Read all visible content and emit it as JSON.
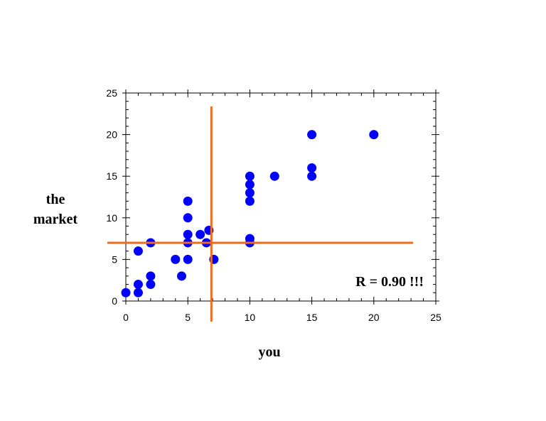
{
  "chart_data": {
    "type": "scatter",
    "xlabel": "you",
    "ylabel": [
      "the",
      "market"
    ],
    "annotation": "R = 0.90 !!!",
    "xlim": [
      0,
      25
    ],
    "ylim": [
      0,
      25
    ],
    "xticks": [
      "0",
      "5",
      "10",
      "15",
      "20",
      "25"
    ],
    "yticks": [
      "0",
      "5",
      "10",
      "15",
      "20",
      "25"
    ],
    "grid": false,
    "marker_color": "#0000ff",
    "crosshair_color": "#f26b1d",
    "crosshair": {
      "x": 6.9,
      "y": 7
    },
    "points": [
      {
        "x": 0,
        "y": 1
      },
      {
        "x": 1,
        "y": 1
      },
      {
        "x": 1,
        "y": 2
      },
      {
        "x": 1,
        "y": 6
      },
      {
        "x": 2,
        "y": 2
      },
      {
        "x": 2,
        "y": 3
      },
      {
        "x": 2,
        "y": 7
      },
      {
        "x": 4,
        "y": 5
      },
      {
        "x": 4.5,
        "y": 3
      },
      {
        "x": 5,
        "y": 5
      },
      {
        "x": 5,
        "y": 7
      },
      {
        "x": 5,
        "y": 8
      },
      {
        "x": 5,
        "y": 10
      },
      {
        "x": 5,
        "y": 12
      },
      {
        "x": 6,
        "y": 8
      },
      {
        "x": 6.5,
        "y": 7
      },
      {
        "x": 6.7,
        "y": 8.5
      },
      {
        "x": 7.1,
        "y": 5
      },
      {
        "x": 10,
        "y": 7
      },
      {
        "x": 10,
        "y": 7.5
      },
      {
        "x": 10,
        "y": 12
      },
      {
        "x": 10,
        "y": 13
      },
      {
        "x": 10,
        "y": 14
      },
      {
        "x": 10,
        "y": 15
      },
      {
        "x": 12,
        "y": 15
      },
      {
        "x": 15,
        "y": 15
      },
      {
        "x": 15,
        "y": 16
      },
      {
        "x": 15,
        "y": 20
      },
      {
        "x": 20,
        "y": 20
      }
    ]
  }
}
